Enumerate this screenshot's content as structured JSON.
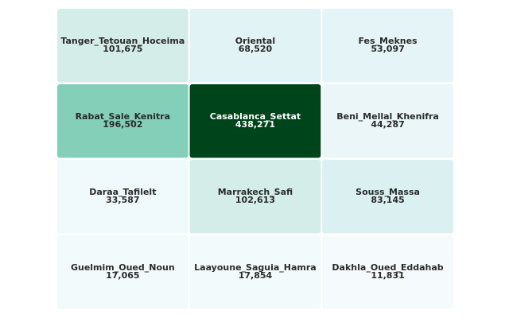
{
  "chart_data": {
    "type": "tile",
    "categories": [
      "Tanger_Tetouan_Hoceima",
      "Oriental",
      "Fes_Meknes",
      "Rabat_Sale_Kenitra",
      "Casablanca_Settat",
      "Beni_Mellal_Khenifra",
      "Daraa_Tafilelt",
      "Marrakech_Safi",
      "Souss_Massa",
      "Guelmim_Oued_Noun",
      "Laayoune_Saguia_Hamra",
      "Dakhla_Oued_Eddahab"
    ],
    "values": [
      101675,
      68520,
      53097,
      196502,
      438271,
      44287,
      33587,
      102613,
      83145,
      17065,
      17854,
      11831
    ],
    "value_labels": [
      "101,675",
      "68,520",
      "53,097",
      "196,502",
      "438,271",
      "44,287",
      "33,587",
      "102,613",
      "83,145",
      "17,065",
      "17,854",
      "11,831"
    ],
    "colors": [
      "#d5ede9",
      "#e2f3f5",
      "#e5f4f7",
      "#84cfb8",
      "#00441b",
      "#eaf6f8",
      "#f0f9fb",
      "#d5ede9",
      "#dbf0f1",
      "#f3fafc",
      "#f3fafc",
      "#f5fbfc"
    ]
  }
}
